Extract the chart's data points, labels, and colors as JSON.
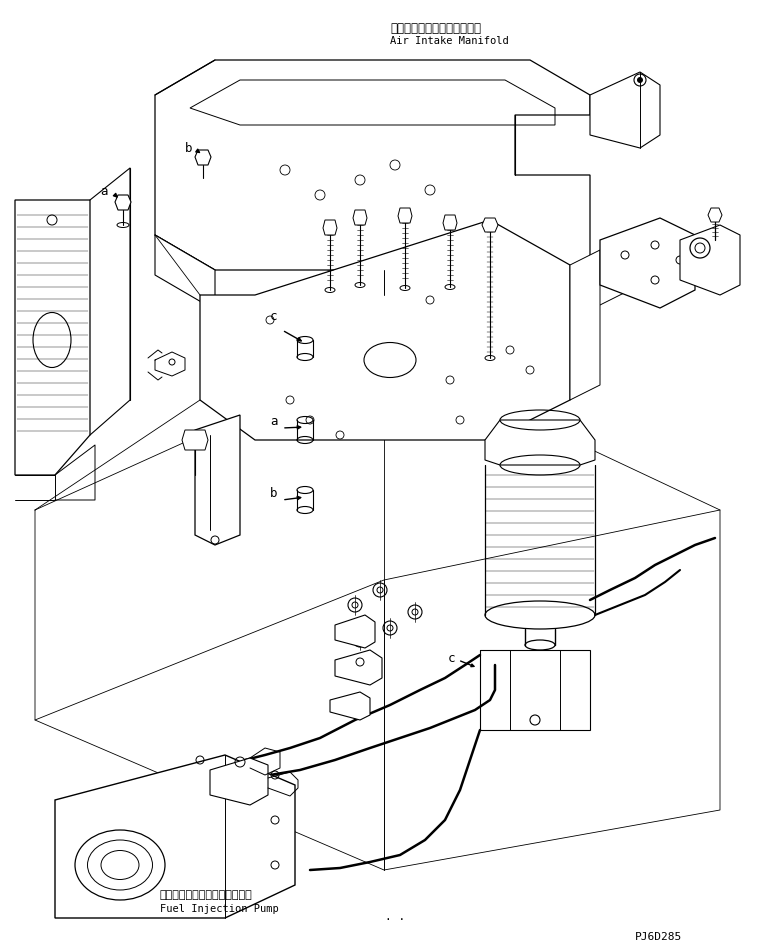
{
  "background_color": "#ffffff",
  "line_color": "#000000",
  "text_color": "#000000",
  "labels": {
    "air_intake_jp": "エアーインテークマニホルド",
    "air_intake_en": "Air Intake Manifold",
    "fuel_pump_jp": "フェルインジェクションポンプ",
    "fuel_pump_en": "Fuel Injection Pump",
    "part_number": "PJ6D285"
  },
  "figsize": [
    7.69,
    9.46
  ],
  "dpi": 100
}
